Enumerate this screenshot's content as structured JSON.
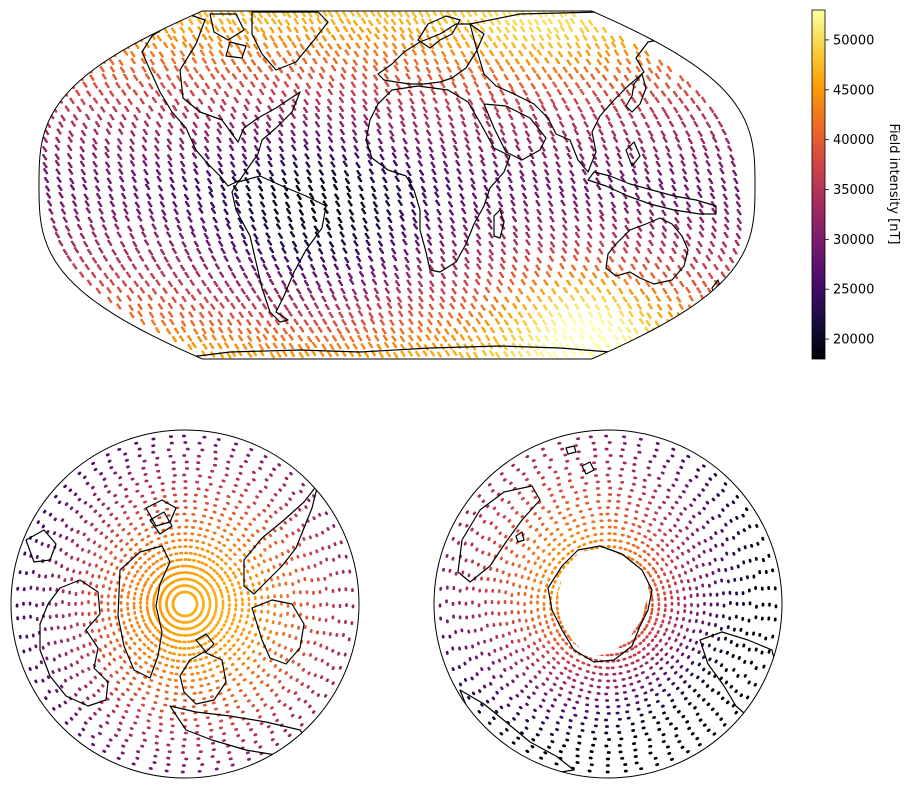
{
  "chart_data": [
    {
      "type": "scatter",
      "map_projection": "robinson",
      "panel": "global",
      "variable": "geomagnetic field intensity",
      "unit": "nT",
      "colormap": "inferno",
      "value_range": [
        18000,
        53000
      ],
      "features": [
        "coastlines",
        "sparse sampling points coloured by intensity"
      ]
    },
    {
      "type": "scatter",
      "map_projection": "north-polar-stereographic",
      "panel": "north-pole",
      "features": [
        "coastlines",
        "radial sampling tracks",
        "data gap at pole"
      ]
    },
    {
      "type": "scatter",
      "map_projection": "south-polar-stereographic",
      "panel": "south-pole",
      "features": [
        "coastlines",
        "radial sampling tracks",
        "data gap over Antarctica"
      ]
    }
  ],
  "colorbar": {
    "label": "Field intensity [nT]",
    "ticks": [
      "20000",
      "25000",
      "30000",
      "35000",
      "40000",
      "45000",
      "50000"
    ],
    "tick_values": [
      20000,
      25000,
      30000,
      35000,
      40000,
      45000,
      50000
    ],
    "min": 18000,
    "max": 53000,
    "colors": [
      "#000004",
      "#1b0c41",
      "#4a0c6b",
      "#781c6d",
      "#a52c60",
      "#cf4446",
      "#ed6925",
      "#fb9b06",
      "#f7d13d",
      "#fcffa4"
    ]
  }
}
